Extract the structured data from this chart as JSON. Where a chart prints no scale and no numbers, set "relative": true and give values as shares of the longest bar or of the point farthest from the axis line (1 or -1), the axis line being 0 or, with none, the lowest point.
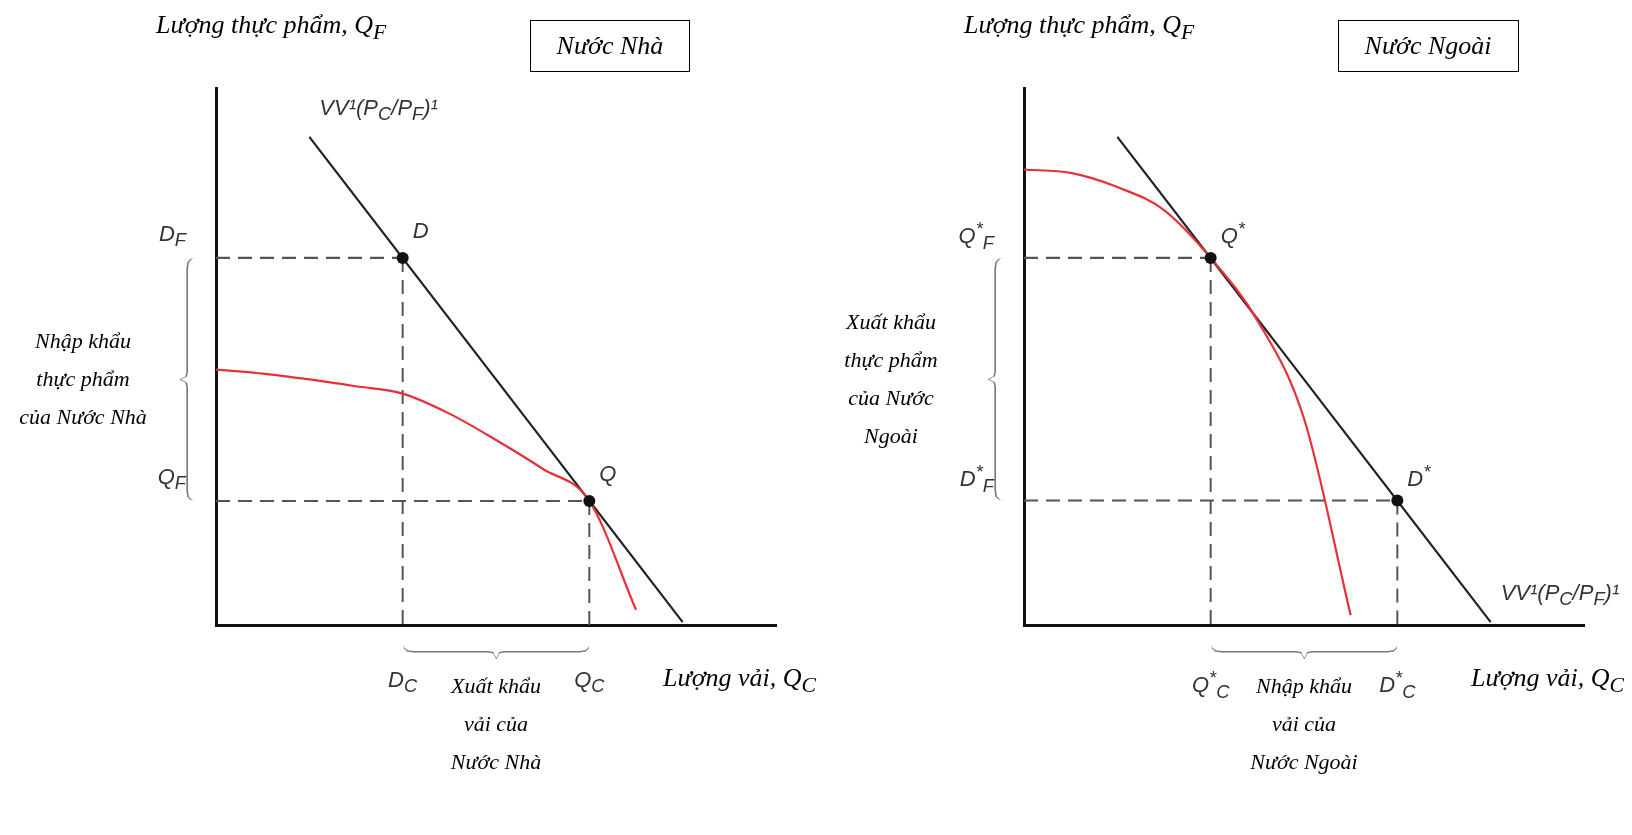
{
  "chart_data": [
    {
      "type": "line",
      "title": "Nước Nhà",
      "xlabel": "Lượng vải, Q$_{C}$",
      "ylabel": "Lượng thực phẩm, Q$_{F}$",
      "relative": true,
      "legend": "top left",
      "categories": [
        null,
        null,
        null,
        null,
        "D$_{C}$",
        null,
        null,
        null,
        "Q$_{C}$",
        null,
        null,
        null,
        null
      ],
      "series": [
        {
          "type": "line",
          "color": "#e8303a",
          "values": [
            0.523,
            0.515,
            0.503,
            0.489,
            0.474,
            0.433,
            0.379,
            0.32,
            0.254,
            0.031,
            null,
            null,
            null
          ]
        },
        {
          "type": "line",
          "name": "VV¹(P$_{C}$/P$_{F}$)¹",
          "color": "#222222",
          "values": [
            null,
            null,
            1,
            null,
            null,
            null,
            null,
            null,
            null,
            null,
            0.006,
            null,
            null
          ]
        },
        {
          "type": "line",
          "color": "#555555",
          "line_style": "dashed",
          "values": [
            0.752,
            0.752,
            0.752,
            0.752,
            0.752,
            null,
            null,
            null,
            null,
            null,
            null,
            null,
            null
          ]
        },
        {
          "type": "line",
          "color": "#555555",
          "line_style": "dashed",
          "values": [
            0.254,
            0.254,
            0.254,
            0.254,
            0.254,
            0.254,
            0.254,
            0.254,
            0.254,
            null,
            null,
            null,
            null
          ]
        },
        {
          "type": "scatter",
          "color": "#111111",
          "marker": "circle",
          "line_style": "dashed",
          "values": [
            null,
            null,
            null,
            null,
            0.752,
            null,
            null,
            null,
            0.254,
            null,
            null,
            null,
            null
          ]
        }
      ],
      "annotations": [
        "Nhập khẩu thực phẩm của Nước Nhà",
        "Xuất khẩu vải của Nước Nhà",
        "D$_{F}$",
        "Q$_{F}$",
        {
          "text": "D",
          "x": "D$_{C}$",
          "y": 0.752
        },
        {
          "text": "Q",
          "x": "Q$_{C}$",
          "y": 0.254
        }
      ]
    },
    {
      "type": "line",
      "title": "Nước Ngoài",
      "xlabel": "Lượng vải, Q$_{C}$",
      "ylabel": "Lượng thực phẩm, Q$_{F}$",
      "relative": true,
      "legend": "bottom right",
      "categories": [
        null,
        null,
        null,
        null,
        "Q$^{*}$$_{C}$",
        null,
        null,
        null,
        "D$^{*}$$_{C}$",
        null,
        null,
        null,
        null
      ],
      "series": [
        {
          "type": "line",
          "color": "#e8303a",
          "values": [
            0.933,
            0.926,
            0.897,
            0.85,
            0.752,
            0.624,
            0.423,
            0.02,
            null,
            null,
            null,
            null,
            null
          ]
        },
        {
          "type": "line",
          "name": "VV¹(P$_{C}$/P$_{F}$)¹",
          "color": "#222222",
          "values": [
            null,
            null,
            1,
            null,
            null,
            null,
            null,
            null,
            null,
            null,
            0.006,
            null,
            null
          ]
        },
        {
          "type": "line",
          "color": "#555555",
          "line_style": "dashed",
          "values": [
            0.752,
            0.752,
            0.752,
            0.752,
            0.752,
            null,
            null,
            null,
            null,
            null,
            null,
            null,
            null
          ]
        },
        {
          "type": "line",
          "color": "#555555",
          "line_style": "dashed",
          "values": [
            0.255,
            0.255,
            0.255,
            0.255,
            0.255,
            0.255,
            0.255,
            0.255,
            0.255,
            null,
            null,
            null,
            null
          ]
        },
        {
          "type": "scatter",
          "color": "#111111",
          "marker": "circle",
          "line_style": "dashed",
          "values": [
            null,
            null,
            null,
            null,
            0.752,
            null,
            null,
            null,
            0.255,
            null,
            null,
            null,
            null
          ]
        }
      ],
      "annotations": [
        "Xuất khẩu thực phẩm của Nước Ngoài",
        "Nhập khẩu vải của Nước Ngoài",
        "Q$^{*}$$_{F}$",
        "D$^{*}$$_{F}$",
        {
          "text": "Q$^{*}$",
          "x": "Q$^{*}$$_{C}$",
          "y": 0.752
        },
        {
          "text": "D$^{*}$",
          "x": "D$^{*}$$_{C}$",
          "y": 0.255
        }
      ]
    }
  ]
}
